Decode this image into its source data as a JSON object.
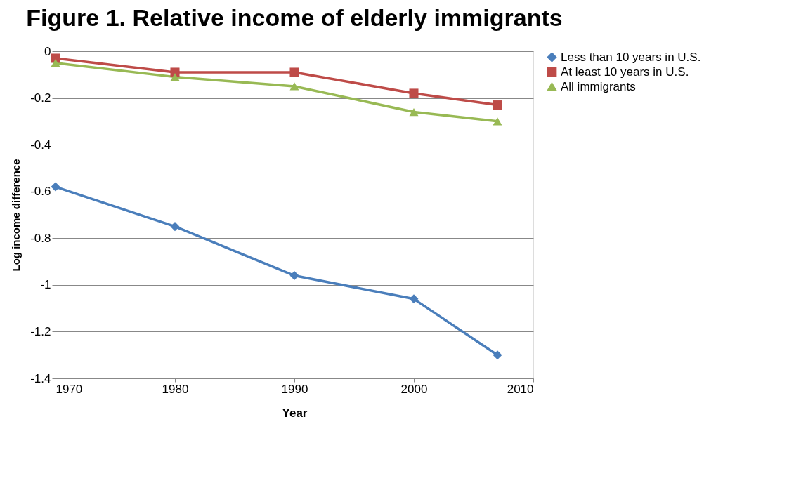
{
  "chart_data": {
    "type": "line",
    "title": "Figure 1. Relative income of elderly immigrants",
    "xlabel": "Year",
    "ylabel": "Log income difference",
    "x": [
      1970,
      1980,
      1990,
      2000,
      2007
    ],
    "series": [
      {
        "name": "Less than 10 years in U.S.",
        "color": "#4a7ebb",
        "marker": "diamond",
        "values": [
          -0.58,
          -0.75,
          -0.96,
          -1.06,
          -1.3
        ]
      },
      {
        "name": "At least 10 years in U.S.",
        "color": "#be4b48",
        "marker": "square",
        "values": [
          -0.03,
          -0.09,
          -0.09,
          -0.18,
          -0.23
        ]
      },
      {
        "name": "All immigrants",
        "color": "#98b954",
        "marker": "triangle",
        "values": [
          -0.05,
          -0.11,
          -0.15,
          -0.26,
          -0.3
        ]
      }
    ],
    "xlim": [
      1970,
      2010
    ],
    "xticks": [
      1970,
      1980,
      1990,
      2000,
      2010
    ],
    "ylim": [
      -1.4,
      0
    ],
    "yticks": [
      -1.4,
      -1.2,
      -1,
      -0.8,
      -0.6,
      -0.4,
      -0.2,
      0
    ],
    "grid": "y",
    "legend": "right",
    "line_style": "solid"
  }
}
